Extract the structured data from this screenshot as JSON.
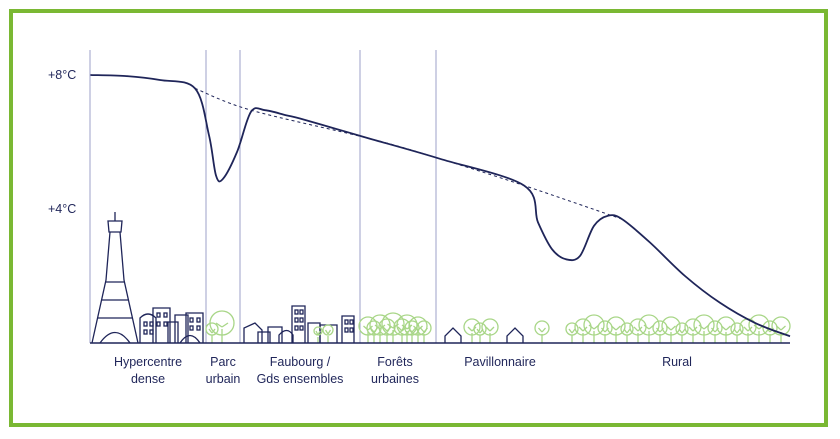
{
  "chart_data": {
    "type": "line",
    "title": "",
    "xlabel": "",
    "ylabel": "",
    "ylim": [
      0,
      8.5
    ],
    "y_ticks": [
      {
        "value": 8,
        "label": "+8°C"
      },
      {
        "value": 4,
        "label": "+4°C"
      }
    ],
    "grid": false,
    "zones": [
      {
        "lines": [
          "Hypercentre",
          "dense"
        ]
      },
      {
        "lines": [
          "Parc",
          "urbain"
        ]
      },
      {
        "lines": [
          "Faubourg /",
          "Gds ensembles"
        ]
      },
      {
        "lines": [
          "Forêts",
          "urbaines"
        ]
      },
      {
        "lines": [
          "Pavillonnaire"
        ]
      },
      {
        "lines": [
          "Rural"
        ]
      }
    ],
    "series": [
      {
        "x": [
          0,
          5,
          10,
          15,
          17,
          18,
          19,
          21,
          23,
          25,
          28,
          30,
          35,
          40,
          50,
          62,
          64,
          66,
          68,
          70,
          72,
          74,
          76,
          80,
          85,
          90,
          95,
          100
        ],
        "values": [
          8.0,
          7.97,
          7.85,
          7.6,
          6.2,
          5.0,
          4.9,
          5.7,
          6.9,
          6.95,
          6.8,
          6.7,
          6.4,
          6.1,
          5.5,
          4.7,
          3.6,
          2.8,
          2.5,
          2.6,
          3.5,
          3.8,
          3.7,
          3.0,
          2.0,
          1.2,
          0.6,
          0.2
        ]
      },
      {
        "style": "dashed",
        "x": [
          15,
          23,
          40,
          50,
          62,
          76
        ],
        "values": [
          7.6,
          6.95,
          6.1,
          5.5,
          4.7,
          3.7
        ]
      }
    ],
    "colors": {
      "line": "#1f2559",
      "vegetation": "#a8d687",
      "divider": "#9ca0c8",
      "frame": "#7ab833"
    }
  }
}
